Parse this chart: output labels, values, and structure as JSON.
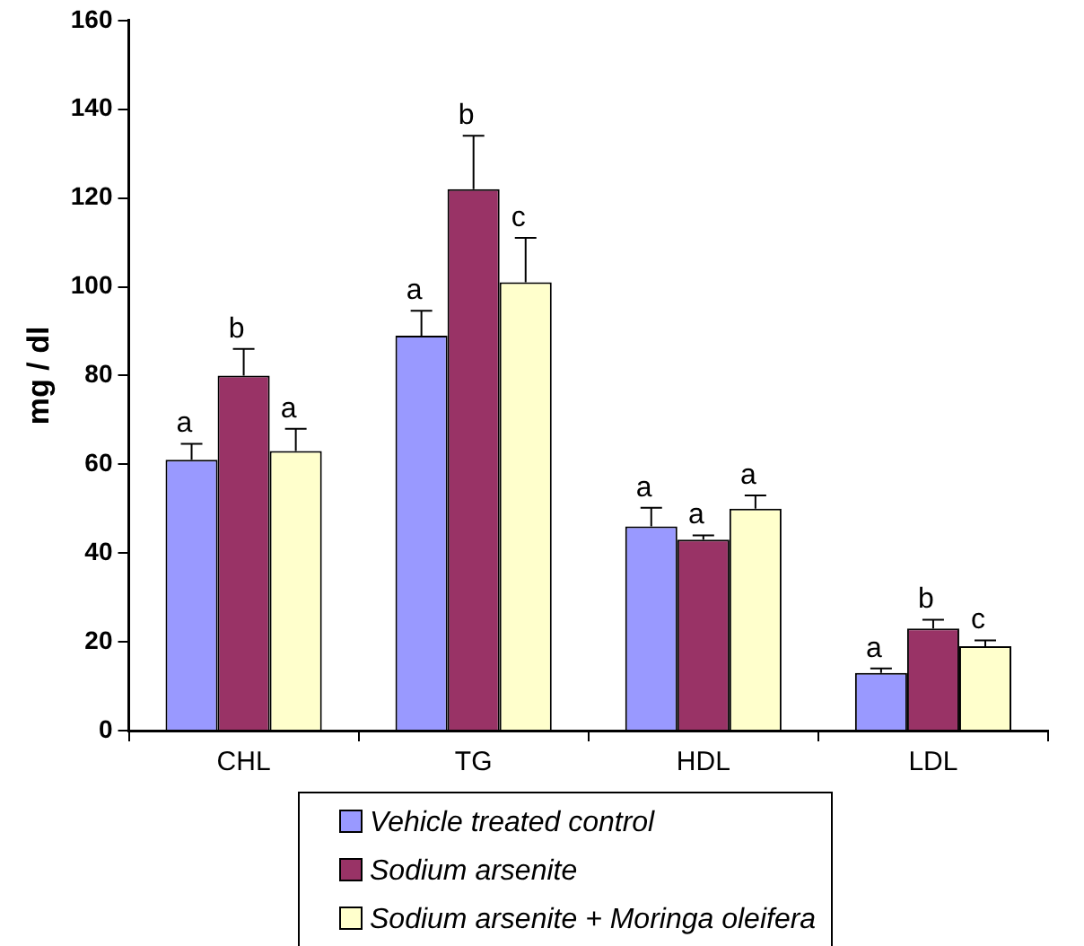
{
  "chart_data": {
    "type": "bar",
    "ylabel": "mg / dl",
    "categories": [
      "CHL",
      "TG",
      "HDL",
      "LDL"
    ],
    "series": [
      {
        "name": "Vehicle treated control",
        "color": "#9999ff",
        "values": [
          61,
          89,
          46,
          13
        ],
        "errors": [
          3.6,
          5.6,
          4.2,
          1
        ],
        "value_labels": [
          "a",
          "a",
          "a",
          "a"
        ]
      },
      {
        "name": "Sodium arsenite",
        "color": "#993366",
        "values": [
          80,
          122,
          43,
          23
        ],
        "errors": [
          6,
          12,
          1,
          2
        ],
        "value_labels": [
          "b",
          "b",
          "a",
          "b"
        ]
      },
      {
        "name": "Sodium arsenite + Moringa oleifera",
        "color": "#ffffcc",
        "values": [
          63,
          101,
          50,
          19
        ],
        "errors": [
          5,
          10,
          3,
          1.3
        ],
        "value_labels": [
          "a",
          "c",
          "a",
          "c"
        ]
      }
    ],
    "ylim": [
      0,
      160
    ],
    "yticks": [
      0,
      20,
      40,
      60,
      80,
      100,
      120,
      140,
      160
    ],
    "grid": false,
    "legend": "bottom"
  }
}
